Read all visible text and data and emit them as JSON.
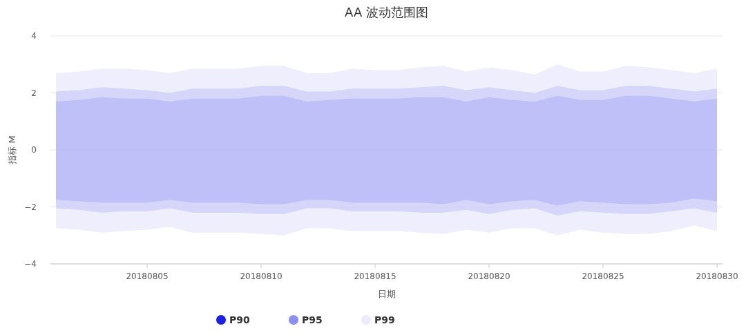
{
  "chart_data": {
    "type": "area",
    "title": "AA 波动范围图",
    "xlabel": "日期",
    "ylabel": "指标 M",
    "categories": [
      null,
      null,
      null,
      null,
      "20180805",
      null,
      null,
      null,
      null,
      "20180810",
      null,
      null,
      null,
      null,
      "20180815",
      null,
      null,
      null,
      null,
      "20180820",
      null,
      null,
      null,
      null,
      "20180825",
      null,
      null,
      null,
      null,
      "20180830"
    ],
    "ylim": [
      -4,
      4
    ],
    "yticks": [
      {
        "value": -4,
        "label": "−4"
      },
      {
        "value": -2,
        "label": "−2"
      },
      0,
      2,
      4
    ],
    "grid": "y",
    "legend": "bottom",
    "series": [
      {
        "name": "P90",
        "color": "#1a22e6",
        "values": [
          1.7,
          1.75,
          1.85,
          1.8,
          1.8,
          1.7,
          1.8,
          1.8,
          1.8,
          1.9,
          1.9,
          1.7,
          1.75,
          1.8,
          1.8,
          1.8,
          1.85,
          1.85,
          1.7,
          1.85,
          1.75,
          1.7,
          1.9,
          1.75,
          1.75,
          1.9,
          1.9,
          1.8,
          1.7,
          1.8
        ]
      },
      {
        "color": "#1a22e6",
        "values": [
          -1.75,
          -1.8,
          -1.85,
          -1.85,
          -1.85,
          -1.75,
          -1.85,
          -1.85,
          -1.85,
          -1.9,
          -1.9,
          -1.75,
          -1.75,
          -1.85,
          -1.85,
          -1.85,
          -1.85,
          -1.9,
          -1.75,
          -1.9,
          -1.8,
          -1.75,
          -1.95,
          -1.8,
          -1.85,
          -1.9,
          -1.9,
          -1.85,
          -1.7,
          -1.8
        ]
      },
      {
        "name": "P95",
        "color": "#8b8ff2",
        "values": [
          2.05,
          2.1,
          2.2,
          2.15,
          2.1,
          2.0,
          2.15,
          2.15,
          2.15,
          2.25,
          2.25,
          2.05,
          2.05,
          2.15,
          2.15,
          2.15,
          2.2,
          2.25,
          2.1,
          2.2,
          2.1,
          2.0,
          2.25,
          2.1,
          2.1,
          2.25,
          2.25,
          2.15,
          2.05,
          2.15
        ]
      },
      {
        "color": "#8b8ff2",
        "values": [
          -2.05,
          -2.1,
          -2.2,
          -2.15,
          -2.15,
          -2.05,
          -2.2,
          -2.2,
          -2.2,
          -2.25,
          -2.25,
          -2.05,
          -2.05,
          -2.15,
          -2.15,
          -2.15,
          -2.2,
          -2.2,
          -2.1,
          -2.25,
          -2.1,
          -2.05,
          -2.3,
          -2.15,
          -2.2,
          -2.25,
          -2.25,
          -2.15,
          -2.05,
          -2.2
        ]
      },
      {
        "name": "P99",
        "color": "#ecebfb",
        "values": [
          2.7,
          2.75,
          2.85,
          2.85,
          2.8,
          2.7,
          2.85,
          2.85,
          2.85,
          2.95,
          2.95,
          2.7,
          2.7,
          2.85,
          2.8,
          2.8,
          2.9,
          2.95,
          2.75,
          2.9,
          2.8,
          2.65,
          3.0,
          2.75,
          2.75,
          2.95,
          2.9,
          2.8,
          2.7,
          2.85
        ]
      },
      {
        "color": "#ecebfb",
        "values": [
          -2.75,
          -2.8,
          -2.9,
          -2.85,
          -2.8,
          -2.7,
          -2.9,
          -2.9,
          -2.9,
          -2.95,
          -3.0,
          -2.75,
          -2.75,
          -2.85,
          -2.85,
          -2.85,
          -2.9,
          -2.95,
          -2.8,
          -2.9,
          -2.75,
          -2.75,
          -3.0,
          -2.8,
          -2.9,
          -2.95,
          -2.95,
          -2.85,
          -2.65,
          -2.85
        ]
      }
    ]
  }
}
